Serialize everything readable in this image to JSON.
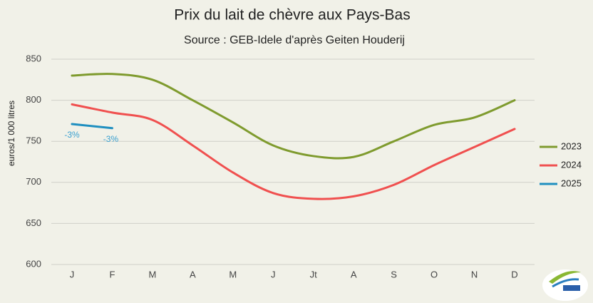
{
  "chart_data": {
    "type": "line",
    "title": "Prix du lait de chèvre aux Pays-Bas",
    "subtitle": "Source : GEB-Idele d'après Geiten Houderij",
    "y_label": "euros/1 000 litres",
    "categories": [
      "J",
      "F",
      "M",
      "A",
      "M",
      "J",
      "Jt",
      "A",
      "S",
      "O",
      "N",
      "D"
    ],
    "series": [
      {
        "name": "2023",
        "color": "#7f9b2e",
        "values": [
          830,
          832,
          825,
          800,
          773,
          745,
          732,
          731,
          750,
          770,
          779,
          800
        ]
      },
      {
        "name": "2024",
        "color": "#f0504f",
        "values": [
          795,
          785,
          776,
          745,
          712,
          687,
          680,
          683,
          697,
          721,
          743,
          765
        ]
      },
      {
        "name": "2025",
        "color": "#1f8fc0",
        "values": [
          771,
          766,
          null,
          null,
          null,
          null,
          null,
          null,
          null,
          null,
          null,
          null
        ],
        "value_labels": [
          "-3%",
          "-3%",
          null,
          null,
          null,
          null,
          null,
          null,
          null,
          null,
          null,
          null
        ]
      }
    ],
    "ylim": [
      600,
      850
    ],
    "yticks": [
      600,
      650,
      700,
      750,
      800,
      850
    ],
    "grid": true,
    "legend": "right"
  }
}
